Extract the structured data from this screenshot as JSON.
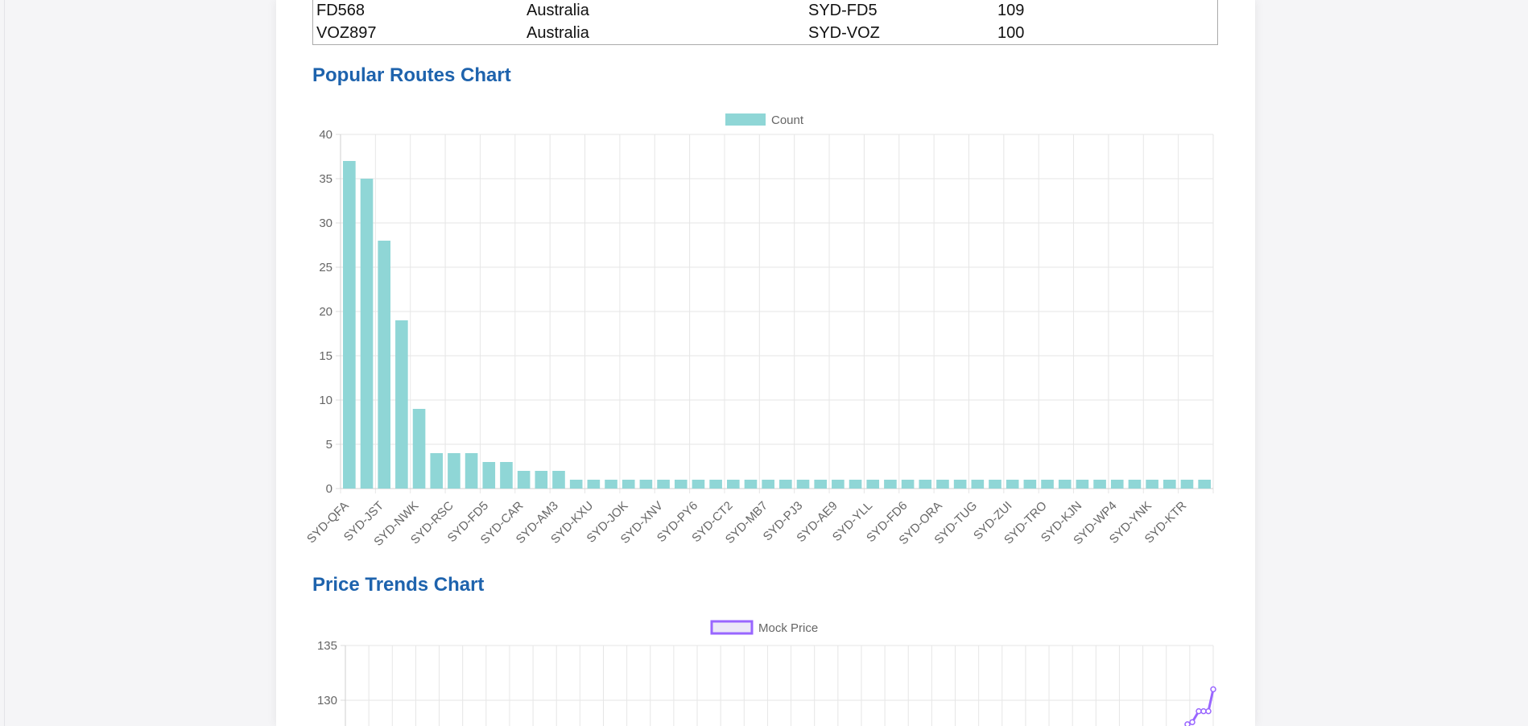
{
  "table": {
    "rows": [
      [
        "FD568",
        "Australia",
        "SYD-FD5",
        "109"
      ],
      [
        "VOZ897",
        "Australia",
        "SYD-VOZ",
        "100"
      ]
    ]
  },
  "routes_section": {
    "title": "Popular Routes Chart"
  },
  "prices_section": {
    "title": "Price Trends Chart"
  },
  "chart_data": [
    {
      "type": "bar",
      "legend": "Count",
      "legend_position": "top",
      "color": "#8fd6d6",
      "ylim": [
        0,
        40
      ],
      "yticks": [
        0,
        5,
        10,
        15,
        20,
        25,
        30,
        35,
        40
      ],
      "grid": true,
      "categories": [
        "SYD-QFA",
        "",
        "SYD-JST",
        "",
        "SYD-NWK",
        "",
        "SYD-RSC",
        "",
        "SYD-FD5",
        "",
        "SYD-CAR",
        "",
        "SYD-AM3",
        "",
        "SYD-KXU",
        "",
        "SYD-JOK",
        "",
        "SYD-XNV",
        "",
        "SYD-PY6",
        "",
        "SYD-CT2",
        "",
        "SYD-MB7",
        "",
        "SYD-PJ3",
        "",
        "SYD-AE9",
        "",
        "SYD-YLL",
        "",
        "SYD-FD6",
        "",
        "SYD-ORA",
        "",
        "SYD-TUG",
        "",
        "SYD-ZUI",
        "",
        "SYD-TRO",
        "",
        "SYD-KJN",
        "",
        "SYD-WP4",
        "",
        "SYD-YNK",
        "",
        "SYD-KTR",
        ""
      ],
      "values": [
        37,
        35,
        28,
        19,
        9,
        4,
        4,
        4,
        3,
        3,
        2,
        2,
        2,
        1,
        1,
        1,
        1,
        1,
        1,
        1,
        1,
        1,
        1,
        1,
        1,
        1,
        1,
        1,
        1,
        1,
        1,
        1,
        1,
        1,
        1,
        1,
        1,
        1,
        1,
        1,
        1,
        1,
        1,
        1,
        1,
        1,
        1,
        1,
        1,
        1
      ]
    },
    {
      "type": "line",
      "legend": "Mock Price",
      "legend_position": "top",
      "color": "#9966ff",
      "y_visible_range": [
        128,
        135
      ],
      "yticks": [
        130,
        135
      ],
      "grid": true,
      "visible_points": [
        {
          "x": 1,
          "y": 127.8
        },
        {
          "x": 2,
          "y": 128.0
        },
        {
          "x": 3,
          "y": 129.0
        },
        {
          "x": 4,
          "y": 129.0
        },
        {
          "x": 5,
          "y": 129.0
        },
        {
          "x": 6,
          "y": 131.0
        }
      ]
    }
  ]
}
